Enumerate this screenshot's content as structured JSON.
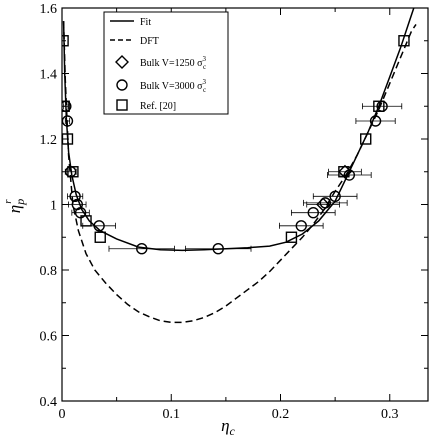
{
  "chart_data": {
    "type": "scatter",
    "xlabel": "η",
    "xlabel_sub": "c",
    "ylabel": "η",
    "ylabel_sub": "p",
    "ylabel_sup": "r",
    "xlim": [
      0,
      0.335
    ],
    "ylim": [
      0.4,
      1.6
    ],
    "xticks": [
      0,
      0.1,
      0.2,
      0.3
    ],
    "xtick_labels": [
      "0",
      "0.1",
      "0.2",
      "0.3"
    ],
    "yticks": [
      0.4,
      0.6,
      0.8,
      1.0,
      1.2,
      1.4,
      1.6
    ],
    "ytick_labels": [
      "0.4",
      "0.6",
      "0.8",
      "1",
      "1.2",
      "1.4",
      "1.6"
    ],
    "legend_position": "top-left",
    "series": [
      {
        "name": "Fit",
        "kind": "line",
        "dash": "solid",
        "points": [
          [
            0.0015,
            1.56
          ],
          [
            0.0025,
            1.4
          ],
          [
            0.004,
            1.26
          ],
          [
            0.006,
            1.16
          ],
          [
            0.009,
            1.09
          ],
          [
            0.013,
            1.03
          ],
          [
            0.018,
            0.985
          ],
          [
            0.025,
            0.95
          ],
          [
            0.035,
            0.92
          ],
          [
            0.05,
            0.895
          ],
          [
            0.07,
            0.87
          ],
          [
            0.09,
            0.862
          ],
          [
            0.11,
            0.86
          ],
          [
            0.13,
            0.862
          ],
          [
            0.15,
            0.865
          ],
          [
            0.17,
            0.868
          ],
          [
            0.19,
            0.873
          ],
          [
            0.205,
            0.885
          ],
          [
            0.22,
            0.91
          ],
          [
            0.235,
            0.95
          ],
          [
            0.25,
            1.01
          ],
          [
            0.26,
            1.08
          ],
          [
            0.27,
            1.15
          ],
          [
            0.28,
            1.22
          ],
          [
            0.29,
            1.3
          ],
          [
            0.3,
            1.39
          ],
          [
            0.31,
            1.48
          ],
          [
            0.318,
            1.56
          ],
          [
            0.322,
            1.6
          ]
        ]
      },
      {
        "name": "DFT",
        "kind": "line",
        "dash": "dashed",
        "points": [
          [
            0.0015,
            1.56
          ],
          [
            0.003,
            1.38
          ],
          [
            0.006,
            1.15
          ],
          [
            0.01,
            1.0
          ],
          [
            0.015,
            0.92
          ],
          [
            0.022,
            0.85
          ],
          [
            0.03,
            0.8
          ],
          [
            0.04,
            0.76
          ],
          [
            0.05,
            0.725
          ],
          [
            0.06,
            0.695
          ],
          [
            0.07,
            0.672
          ],
          [
            0.08,
            0.657
          ],
          [
            0.09,
            0.645
          ],
          [
            0.1,
            0.64
          ],
          [
            0.11,
            0.64
          ],
          [
            0.12,
            0.645
          ],
          [
            0.13,
            0.655
          ],
          [
            0.14,
            0.67
          ],
          [
            0.15,
            0.69
          ],
          [
            0.16,
            0.715
          ],
          [
            0.17,
            0.74
          ],
          [
            0.18,
            0.765
          ],
          [
            0.19,
            0.795
          ],
          [
            0.2,
            0.83
          ],
          [
            0.21,
            0.865
          ],
          [
            0.22,
            0.9
          ],
          [
            0.23,
            0.94
          ],
          [
            0.24,
            0.985
          ],
          [
            0.25,
            1.04
          ],
          [
            0.26,
            1.09
          ],
          [
            0.27,
            1.15
          ],
          [
            0.28,
            1.22
          ],
          [
            0.29,
            1.29
          ],
          [
            0.3,
            1.37
          ],
          [
            0.31,
            1.45
          ],
          [
            0.32,
            1.53
          ],
          [
            0.324,
            1.55
          ]
        ]
      },
      {
        "name": "Bulk V=1250 σ",
        "name_sup": "3",
        "name_sub": "c",
        "kind": "marker",
        "marker": "diamond",
        "points": [
          [
            0.239,
            1.0
          ],
          [
            0.259,
            1.1
          ]
        ],
        "xerr": [
          0.015,
          0.015
        ]
      },
      {
        "name": "Bulk V=3000 σ",
        "name_sup": "3",
        "name_sub": "c",
        "kind": "marker",
        "marker": "circle",
        "points": [
          [
            0.0035,
            1.3
          ],
          [
            0.005,
            1.255
          ],
          [
            0.008,
            1.1
          ],
          [
            0.012,
            1.025
          ],
          [
            0.014,
            1.0
          ],
          [
            0.017,
            0.975
          ],
          [
            0.034,
            0.935
          ],
          [
            0.073,
            0.865
          ],
          [
            0.143,
            0.865
          ],
          [
            0.219,
            0.935
          ],
          [
            0.23,
            0.975
          ],
          [
            0.241,
            1.005
          ],
          [
            0.25,
            1.025
          ],
          [
            0.263,
            1.09
          ],
          [
            0.287,
            1.255
          ],
          [
            0.293,
            1.3
          ]
        ],
        "xerr": [
          0.002,
          0.002,
          0.005,
          0.007,
          0.008,
          0.008,
          0.015,
          0.03,
          0.03,
          0.02,
          0.02,
          0.02,
          0.02,
          0.02,
          0.018,
          0.018
        ]
      },
      {
        "name": "Ref. [20]",
        "kind": "marker",
        "marker": "square",
        "points": [
          [
            0.001,
            1.5
          ],
          [
            0.002,
            1.3
          ],
          [
            0.005,
            1.2
          ],
          [
            0.01,
            1.1
          ],
          [
            0.022,
            0.95
          ],
          [
            0.035,
            0.9
          ],
          [
            0.21,
            0.9
          ],
          [
            0.258,
            1.1
          ],
          [
            0.278,
            1.2
          ],
          [
            0.29,
            1.3
          ],
          [
            0.313,
            1.5
          ]
        ]
      }
    ]
  }
}
